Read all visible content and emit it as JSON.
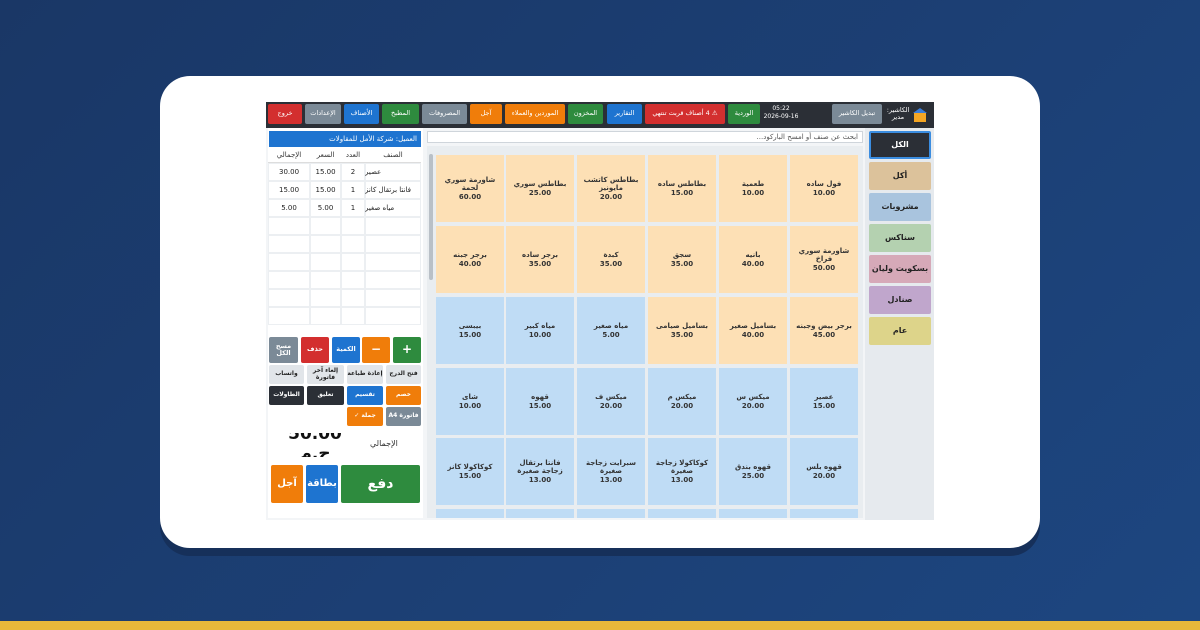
{
  "top_bar": {
    "cashier": "الكاشير: مدير",
    "switch": "تبديل الكاشير",
    "time": "05:22",
    "date": "2026-09-16",
    "buttons": [
      "الوردية",
      "⚠ 4 أصناف قربت تنتهي",
      "التقارير",
      "المخزون",
      "الموردين والعملاء",
      "آجل",
      "المصروفات",
      "المطبخ",
      "الأصناف",
      "الإعدادات",
      "خروج"
    ]
  },
  "categories": [
    "الكل",
    "أكل",
    "مشروبات",
    "سناكس",
    "بسكويت وليان",
    "صنادل",
    "عام"
  ],
  "search": "ابحث عن صنف أو امسح الباركود...",
  "products": [
    {
      "name": "فول ساده",
      "price": "10.00"
    },
    {
      "name": "طعمية",
      "price": "10.00"
    },
    {
      "name": "بطاطس ساده",
      "price": "15.00"
    },
    {
      "name": "بطاطس كاتشب مايونيز",
      "price": "20.00"
    },
    {
      "name": "بطاطس سوري",
      "price": "25.00"
    },
    {
      "name": "شاورمة سوري لحمة",
      "price": "60.00"
    },
    {
      "name": "شاورمة سوري فراخ",
      "price": "50.00"
    },
    {
      "name": "بانيه",
      "price": "40.00"
    },
    {
      "name": "سجق",
      "price": "35.00"
    },
    {
      "name": "كبدة",
      "price": "35.00"
    },
    {
      "name": "برجر ساده",
      "price": "35.00"
    },
    {
      "name": "برجر جبنه",
      "price": "40.00"
    },
    {
      "name": "برجر بيض وجبنه",
      "price": "45.00"
    },
    {
      "name": "بساميل صغير",
      "price": "40.00"
    },
    {
      "name": "بساميل صيامى",
      "price": "35.00"
    },
    {
      "name": "مياه صغير",
      "price": "5.00"
    },
    {
      "name": "مياه كبير",
      "price": "10.00"
    },
    {
      "name": "بيبسى",
      "price": "15.00"
    },
    {
      "name": "عصير",
      "price": "15.00"
    },
    {
      "name": "ميكس س",
      "price": "20.00"
    },
    {
      "name": "ميكس م",
      "price": "20.00"
    },
    {
      "name": "ميكس ف",
      "price": "20.00"
    },
    {
      "name": "قهوه",
      "price": "15.00"
    },
    {
      "name": "شاى",
      "price": "10.00"
    },
    {
      "name": "قهوه بلس",
      "price": "20.00"
    },
    {
      "name": "قهوه بندق",
      "price": "25.00"
    },
    {
      "name": "كوكاكولا زجاجة صغيرة",
      "price": "13.00"
    },
    {
      "name": "سبرايت زجاجة صغيرة",
      "price": "13.00"
    },
    {
      "name": "فانتا برتقال زجاجة صغيرة",
      "price": "13.00"
    },
    {
      "name": "كوكاكولا كانز",
      "price": "15.00"
    }
  ],
  "cart": {
    "customer": "العميل: شركة الأمل للمقاولات",
    "headers": [
      "الصنف",
      "العدد",
      "السعر",
      "الإجمالي"
    ],
    "rows": [
      [
        "عصير",
        "2",
        "15.00",
        "30.00"
      ],
      [
        "فانتا برتقال كانز",
        "1",
        "15.00",
        "15.00"
      ],
      [
        "مياه صغير",
        "1",
        "5.00",
        "5.00"
      ]
    ]
  },
  "actions": [
    [
      "+",
      "−",
      "الكمية",
      "حذف",
      "مسح الكل"
    ],
    [
      "فتح الدرج",
      "إعادة طباعة",
      "إلغاء آخر فاتورة",
      "واتساب"
    ],
    [
      "خصم",
      "تقسيم",
      "تعليق",
      "الطاولات"
    ],
    [
      "فاتورة A4",
      "جملة ✓"
    ]
  ],
  "total": {
    "label": "الإجمالي",
    "value": "50.00 ج.م"
  },
  "payment": [
    "دفع",
    "بطاقة",
    "آجل"
  ]
}
